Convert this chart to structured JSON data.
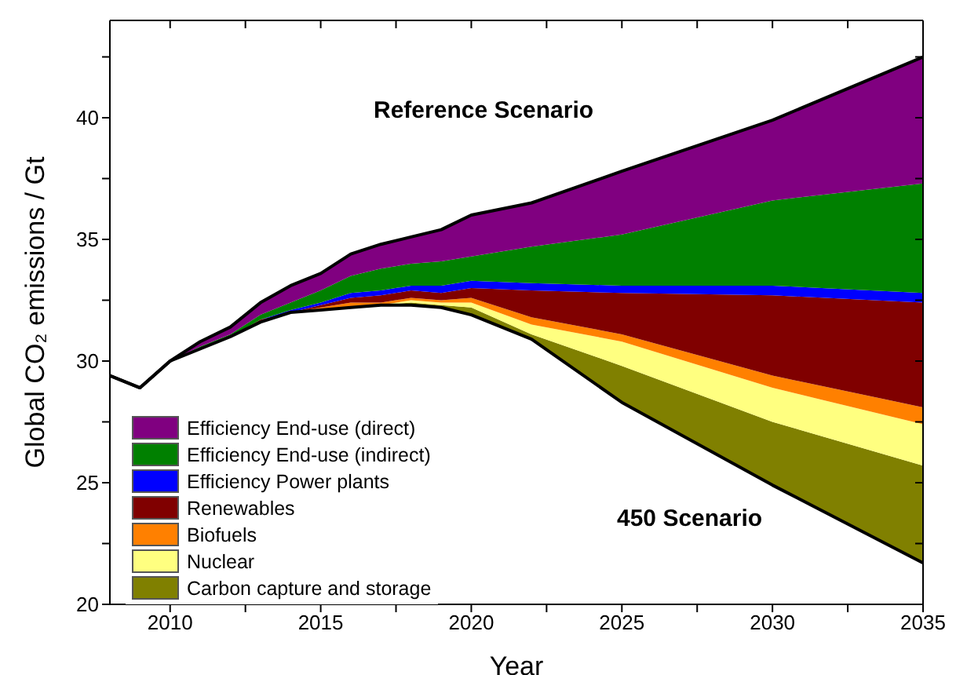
{
  "chart_data": {
    "type": "area",
    "xlabel": "Year",
    "ylabel": "Global CO₂ emissions / Gt",
    "x": [
      2008,
      2009,
      2010,
      2011,
      2012,
      2013,
      2014,
      2015,
      2016,
      2017,
      2018,
      2019,
      2020,
      2022,
      2025,
      2030,
      2035
    ],
    "series": [
      {
        "type": "line",
        "color": "#000000",
        "values": [
          29.4,
          28.9,
          30.0,
          30.5,
          31.0,
          31.6,
          32.0,
          32.1,
          32.2,
          32.3,
          32.3,
          32.2,
          31.9,
          30.9,
          28.3,
          24.9,
          21.7
        ]
      },
      {
        "name": "Carbon capture and storage",
        "color": "#808000",
        "values": [
          29.4,
          28.9,
          30.0,
          30.5,
          31.0,
          31.6,
          32.0,
          32.1,
          32.2,
          32.3,
          32.4,
          32.3,
          32.2,
          31.1,
          29.8,
          27.5,
          25.7
        ]
      },
      {
        "name": "Nuclear",
        "color": "#ffff80",
        "values": [
          29.4,
          28.9,
          30.0,
          30.5,
          31.0,
          31.6,
          32.0,
          32.1,
          32.2,
          32.3,
          32.5,
          32.4,
          32.4,
          31.5,
          30.8,
          28.9,
          27.4
        ]
      },
      {
        "name": "Biofuels",
        "color": "#ff8000",
        "values": [
          29.4,
          28.9,
          30.0,
          30.5,
          31.0,
          31.6,
          32.0,
          32.2,
          32.4,
          32.4,
          32.6,
          32.5,
          32.6,
          31.8,
          31.1,
          29.4,
          28.1
        ]
      },
      {
        "name": "Renewables",
        "color": "#800000",
        "values": [
          29.4,
          28.9,
          30.0,
          30.5,
          31.0,
          31.7,
          32.0,
          32.3,
          32.6,
          32.7,
          32.9,
          32.8,
          33.0,
          32.9,
          32.8,
          32.7,
          32.4
        ]
      },
      {
        "name": "Efficiency Power plants",
        "color": "#0000ff",
        "values": [
          29.4,
          28.9,
          30.0,
          30.5,
          31.0,
          31.7,
          32.1,
          32.4,
          32.8,
          32.9,
          33.1,
          33.1,
          33.3,
          33.2,
          33.1,
          33.1,
          32.8
        ]
      },
      {
        "name": "Efficiency End-use (indirect)",
        "color": "#008000",
        "values": [
          29.4,
          28.9,
          30.0,
          30.6,
          31.1,
          31.9,
          32.4,
          32.9,
          33.5,
          33.8,
          34.0,
          34.1,
          34.3,
          34.7,
          35.2,
          36.6,
          37.3
        ]
      },
      {
        "name": "Efficiency End-use (direct)",
        "color": "#800080",
        "values": [
          29.4,
          28.9,
          30.0,
          30.8,
          31.4,
          32.4,
          33.1,
          33.6,
          34.4,
          34.8,
          35.1,
          35.4,
          36.0,
          36.5,
          37.8,
          39.9,
          42.5
        ]
      }
    ],
    "xlim": [
      2008,
      2035
    ],
    "xticks": [
      2010,
      {
        "value": 2012.5,
        "label": null
      },
      2015,
      {
        "value": 2017.5,
        "label": null
      },
      2020,
      {
        "value": 2022.5,
        "label": null
      },
      2025,
      {
        "value": 2027.5,
        "label": null
      },
      2030,
      {
        "value": 2032.5,
        "label": null
      },
      2035
    ],
    "ylim": [
      20,
      44
    ],
    "yticks": [
      20,
      {
        "value": 22.5,
        "label": null
      },
      25,
      {
        "value": 27.5,
        "label": null
      },
      30,
      {
        "value": 32.5,
        "label": null
      },
      35,
      {
        "value": 37.5,
        "label": null
      },
      40,
      {
        "value": 42.5,
        "label": null
      }
    ],
    "annotations": [
      "Reference Scenario",
      "450 Scenario"
    ],
    "legend": "bottom left",
    "grid": false
  }
}
